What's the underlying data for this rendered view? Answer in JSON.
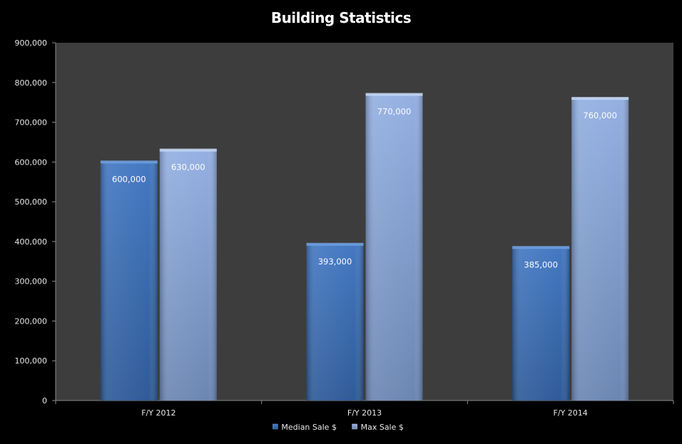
{
  "chart_data": {
    "type": "bar",
    "title": "Building Statistics",
    "categories": [
      "F/Y 2012",
      "F/Y 2013",
      "F/Y 2014"
    ],
    "series": [
      {
        "name": "Median Sale $",
        "values": [
          600000,
          393000,
          385000
        ],
        "color": "#3a6db3",
        "labels": [
          "600,000",
          "393,000",
          "385,000"
        ]
      },
      {
        "name": "Max Sale $",
        "values": [
          630000,
          770000,
          760000
        ],
        "color": "#8ea9d9",
        "labels": [
          "630,000",
          "770,000",
          "760,000"
        ]
      }
    ],
    "ylim": [
      0,
      900000
    ],
    "yticks": [
      0,
      100000,
      200000,
      300000,
      400000,
      500000,
      600000,
      700000,
      800000,
      900000
    ],
    "ytick_labels": [
      "0",
      "100,000",
      "200,000",
      "300,000",
      "400,000",
      "500,000",
      "600,000",
      "700,000",
      "800,000",
      "900,000"
    ],
    "legend": "bottom",
    "grid": false,
    "plot_background": "#3d3d3d",
    "page_background": "#000000"
  }
}
